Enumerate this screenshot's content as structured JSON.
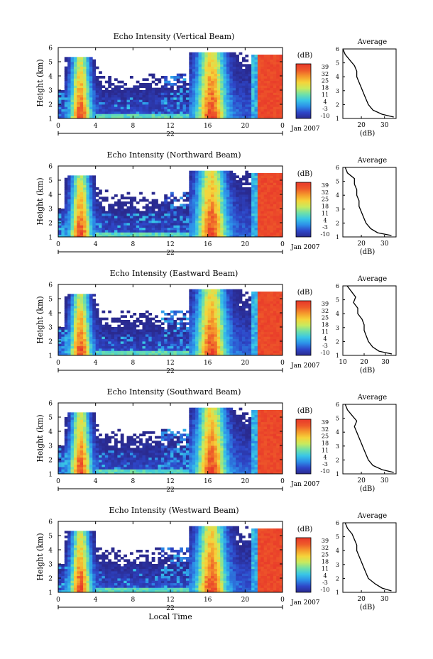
{
  "figure": {
    "colorbar_unit": "(dB)",
    "colorbar_ticks": [
      "39",
      "32",
      "25",
      "18",
      "11",
      "4",
      "-3",
      "-10"
    ],
    "colorbar_colors": [
      "#2a2a8f",
      "#2e46c8",
      "#2c8fe8",
      "#39c6e6",
      "#6fe0a8",
      "#c8ea5e",
      "#f5d43a",
      "#f59a2c",
      "#ee5a2a",
      "#e8382a"
    ],
    "x_ticks": [
      "0",
      "4",
      "8",
      "12",
      "16",
      "20",
      "0"
    ],
    "date_center_label": "22",
    "date_label": "Jan 2007",
    "xlabel": "Local Time",
    "ylabel": "Height (km)",
    "y_ticks": [
      "1",
      "2",
      "3",
      "4",
      "5",
      "6"
    ],
    "avg_title": "Average",
    "avg_xlabel": "(dB)"
  },
  "chart_data": [
    {
      "type": "heatmap",
      "title": "Echo Intensity (Vertical Beam)",
      "xlabel": "",
      "ylabel": "Height (km)",
      "xlim": [
        0,
        24
      ],
      "ylim": [
        1,
        6
      ],
      "clim": [
        -10,
        39
      ],
      "profile": {
        "type": "line",
        "title": "Average",
        "xlim": [
          12,
          35
        ],
        "x_ticks": [
          "20",
          "30"
        ],
        "ylim": [
          1,
          6
        ],
        "height_km": [
          1.1,
          1.3,
          1.6,
          2.0,
          2.4,
          2.8,
          3.2,
          3.6,
          4.0,
          4.4,
          4.8,
          5.2,
          5.6,
          6.0
        ],
        "values_db": [
          34,
          29,
          25,
          23,
          22,
          21,
          20,
          19,
          18,
          18,
          17,
          15,
          13,
          12
        ]
      }
    },
    {
      "type": "heatmap",
      "title": "Echo Intensity (Northward Beam)",
      "xlabel": "",
      "ylabel": "Height (km)",
      "xlim": [
        0,
        24
      ],
      "ylim": [
        1,
        6
      ],
      "clim": [
        -10,
        39
      ],
      "profile": {
        "type": "line",
        "title": "Average",
        "xlim": [
          12,
          35
        ],
        "x_ticks": [
          "20",
          "30"
        ],
        "ylim": [
          1,
          6
        ],
        "height_km": [
          1.1,
          1.3,
          1.6,
          2.0,
          2.4,
          2.8,
          3.2,
          3.6,
          4.0,
          4.4,
          4.8,
          5.2,
          5.6,
          6.0
        ],
        "values_db": [
          33,
          27,
          24,
          22,
          21,
          20,
          19,
          19,
          18,
          18,
          17,
          17,
          14,
          13
        ]
      }
    },
    {
      "type": "heatmap",
      "title": "Echo Intensity (Eastward Beam)",
      "xlabel": "",
      "ylabel": "Height (km)",
      "xlim": [
        0,
        24
      ],
      "ylim": [
        1,
        6
      ],
      "clim": [
        -10,
        39
      ],
      "profile": {
        "type": "line",
        "title": "Average",
        "xlim": [
          10,
          35
        ],
        "x_ticks": [
          "10",
          "20",
          "30"
        ],
        "ylim": [
          1,
          6
        ],
        "height_km": [
          1.1,
          1.3,
          1.6,
          2.0,
          2.4,
          2.8,
          3.2,
          3.6,
          4.0,
          4.4,
          4.8,
          5.2,
          5.6,
          6.0
        ],
        "values_db": [
          33,
          27,
          24,
          22,
          21,
          20,
          20,
          19,
          17,
          17,
          15,
          16,
          14,
          12
        ]
      }
    },
    {
      "type": "heatmap",
      "title": "Echo Intensity (Southward Beam)",
      "xlabel": "",
      "ylabel": "Height (km)",
      "xlim": [
        0,
        24
      ],
      "ylim": [
        1,
        6
      ],
      "clim": [
        -10,
        39
      ],
      "profile": {
        "type": "line",
        "title": "Average",
        "xlim": [
          12,
          35
        ],
        "x_ticks": [
          "20",
          "30"
        ],
        "ylim": [
          1,
          6
        ],
        "height_km": [
          1.1,
          1.3,
          1.6,
          2.0,
          2.4,
          2.8,
          3.2,
          3.6,
          4.0,
          4.4,
          4.8,
          5.2,
          5.6,
          6.0
        ],
        "values_db": [
          34,
          29,
          25,
          23,
          22,
          21,
          20,
          19,
          18,
          17,
          18,
          16,
          14,
          13
        ]
      }
    },
    {
      "type": "heatmap",
      "title": "Echo Intensity (Westward Beam)",
      "xlabel": "Local Time",
      "ylabel": "Height (km)",
      "xlim": [
        0,
        24
      ],
      "ylim": [
        1,
        6
      ],
      "clim": [
        -10,
        39
      ],
      "profile": {
        "type": "line",
        "title": "Average",
        "xlim": [
          12,
          35
        ],
        "x_ticks": [
          "20",
          "30"
        ],
        "ylim": [
          1,
          6
        ],
        "height_km": [
          1.1,
          1.3,
          1.6,
          2.0,
          2.4,
          2.8,
          3.2,
          3.6,
          4.0,
          4.4,
          4.8,
          5.2,
          5.6,
          6.0
        ],
        "values_db": [
          33,
          29,
          26,
          23,
          22,
          21,
          20,
          19,
          18,
          18,
          17,
          16,
          14,
          13
        ]
      }
    }
  ]
}
